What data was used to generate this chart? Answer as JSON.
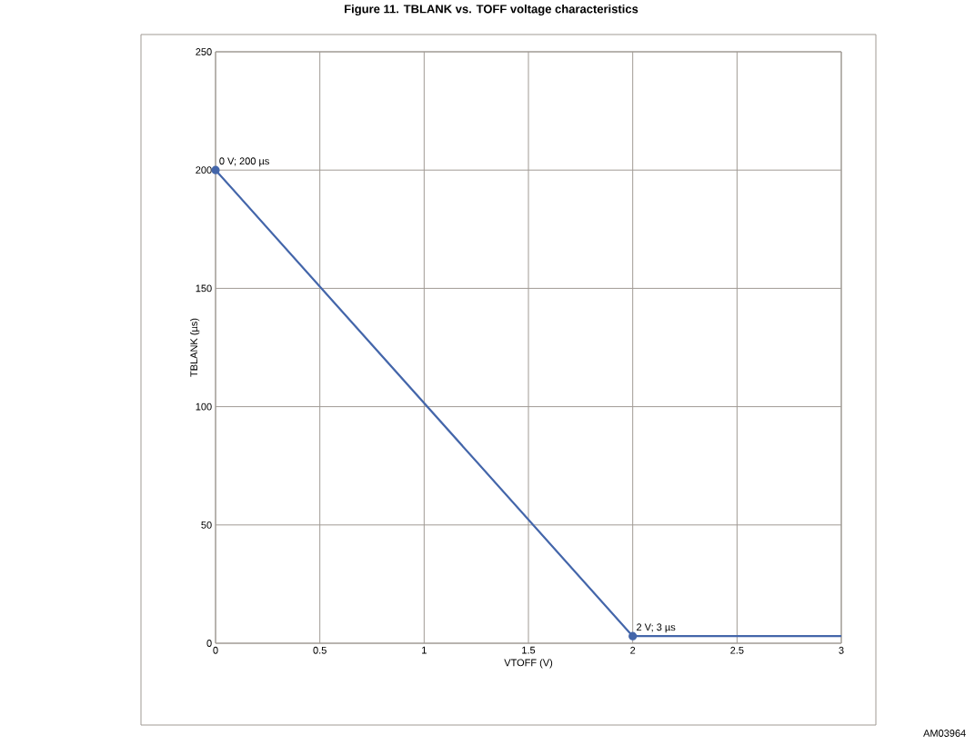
{
  "chart_data": {
    "type": "line",
    "title": "Figure 11. TBLANK vs. TOFF voltage characteristics",
    "xlabel": "VTOFF (V)",
    "ylabel": "TBLANK (µs)",
    "x": [
      0,
      2,
      3
    ],
    "series": [
      {
        "color": "#4466aa",
        "values": [
          200,
          3,
          3
        ]
      }
    ],
    "xlim": [
      0,
      3
    ],
    "xticks": [
      0,
      0.5,
      1,
      1.5,
      2,
      2.5,
      3
    ],
    "ylim": [
      0,
      250
    ],
    "yticks": [
      0,
      50,
      100,
      150,
      200,
      250
    ],
    "grid": true,
    "marker": "circle",
    "line_style": "solid",
    "annotations": [
      {
        "text": "0 V; 200 µs",
        "x": 0,
        "y": 200
      },
      {
        "text": "2 V; 3 µs",
        "x": 2,
        "y": 3
      },
      "AM03964"
    ]
  }
}
